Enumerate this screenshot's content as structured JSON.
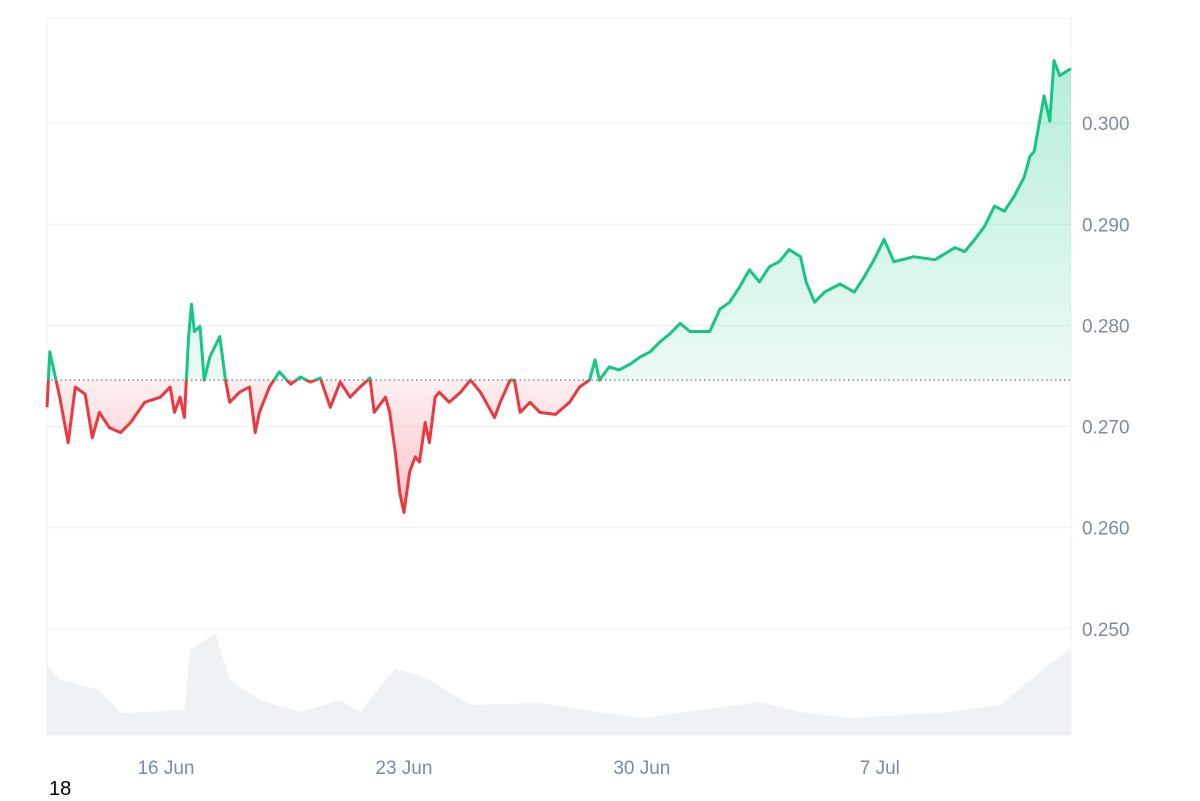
{
  "chart_data": {
    "type": "line",
    "title": "",
    "xlabel": "",
    "ylabel": "",
    "ylim": [
      0.2395,
      0.3104
    ],
    "xlim": [
      "06-12 12:00",
      "07-12 15:00"
    ],
    "x_ticks": [
      "16 Jun",
      "23 Jun",
      "30 Jun",
      "7 Jul"
    ],
    "x_tick_dates": [
      "06-16 00:00",
      "06-23 00:00",
      "06-30 00:00",
      "07-07 00:00"
    ],
    "y_ticks": [
      0.25,
      0.26,
      0.27,
      0.28,
      0.29,
      0.3
    ],
    "y_tick_labels": [
      "0.250",
      "0.260",
      "0.270",
      "0.280",
      "0.290",
      "0.300"
    ],
    "y_axis_position": "right",
    "grid": true,
    "baseline": 0.2746,
    "colors": {
      "above": "#16c784",
      "below": "#ea3943",
      "volume": "#eff2f5",
      "grid": "#eff2f5",
      "tick": "#808a9d"
    },
    "series": [
      {
        "values": [
          [
            "06-12 12:00",
            0.2719
          ],
          [
            "06-12 14:00",
            0.2774
          ],
          [
            "06-12 21:00",
            0.2729
          ],
          [
            "06-13 03:00",
            0.2684
          ],
          [
            "06-13 08:00",
            0.2739
          ],
          [
            "06-13 15:00",
            0.2732
          ],
          [
            "06-13 20:00",
            0.2689
          ],
          [
            "06-14 01:00",
            0.2714
          ],
          [
            "06-14 08:00",
            0.2699
          ],
          [
            "06-14 16:00",
            0.2694
          ],
          [
            "06-14 23:00",
            0.2704
          ],
          [
            "06-15 09:00",
            0.2724
          ],
          [
            "06-15 20:00",
            0.2729
          ],
          [
            "06-16 03:00",
            0.2739
          ],
          [
            "06-16 06:00",
            0.2714
          ],
          [
            "06-16 10:00",
            0.2729
          ],
          [
            "06-16 13:00",
            0.2709
          ],
          [
            "06-16 16:00",
            0.2789
          ],
          [
            "06-16 18:00",
            0.2821
          ],
          [
            "06-16 20:00",
            0.2794
          ],
          [
            "06-17 00:00",
            0.2799
          ],
          [
            "06-17 03:00",
            0.2746
          ],
          [
            "06-17 07:00",
            0.2769
          ],
          [
            "06-17 14:00",
            0.2789
          ],
          [
            "06-17 18:00",
            0.2746
          ],
          [
            "06-17 21:00",
            0.2724
          ],
          [
            "06-18 04:00",
            0.2734
          ],
          [
            "06-18 11:00",
            0.2739
          ],
          [
            "06-18 15:00",
            0.2694
          ],
          [
            "06-18 18:00",
            0.2714
          ],
          [
            "06-19 01:00",
            0.2739
          ],
          [
            "06-19 08:00",
            0.2754
          ],
          [
            "06-19 16:00",
            0.2742
          ],
          [
            "06-19 23:00",
            0.2749
          ],
          [
            "06-20 06:00",
            0.2744
          ],
          [
            "06-20 13:00",
            0.2748
          ],
          [
            "06-20 20:00",
            0.2719
          ],
          [
            "06-21 03:00",
            0.2744
          ],
          [
            "06-21 10:00",
            0.2729
          ],
          [
            "06-21 17:00",
            0.2739
          ],
          [
            "06-22 00:00",
            0.2748
          ],
          [
            "06-22 03:00",
            0.2714
          ],
          [
            "06-22 11:00",
            0.2729
          ],
          [
            "06-22 14:00",
            0.2714
          ],
          [
            "06-22 18:00",
            0.2674
          ],
          [
            "06-22 21:00",
            0.2635
          ],
          [
            "06-23 00:00",
            0.2615
          ],
          [
            "06-23 04:00",
            0.2655
          ],
          [
            "06-23 08:00",
            0.267
          ],
          [
            "06-23 11:00",
            0.2665
          ],
          [
            "06-23 15:00",
            0.2704
          ],
          [
            "06-23 18:00",
            0.2684
          ],
          [
            "06-23 22:00",
            0.2729
          ],
          [
            "06-24 01:00",
            0.2734
          ],
          [
            "06-24 08:00",
            0.2724
          ],
          [
            "06-24 16:00",
            0.2734
          ],
          [
            "06-24 23:00",
            0.2746
          ],
          [
            "06-25 06:00",
            0.2734
          ],
          [
            "06-25 16:00",
            0.2709
          ],
          [
            "06-25 20:00",
            0.2724
          ],
          [
            "06-26 03:00",
            0.2746
          ],
          [
            "06-26 06:00",
            0.2746
          ],
          [
            "06-26 10:00",
            0.2714
          ],
          [
            "06-26 17:00",
            0.2724
          ],
          [
            "06-27 00:00",
            0.2714
          ],
          [
            "06-27 11:00",
            0.2712
          ],
          [
            "06-27 21:00",
            0.2724
          ],
          [
            "06-28 04:00",
            0.2739
          ],
          [
            "06-28 11:00",
            0.2746
          ],
          [
            "06-28 15:00",
            0.2766
          ],
          [
            "06-28 18:00",
            0.2746
          ],
          [
            "06-29 01:00",
            0.2759
          ],
          [
            "06-29 08:00",
            0.2756
          ],
          [
            "06-29 16:00",
            0.2762
          ],
          [
            "06-29 23:00",
            0.2769
          ],
          [
            "06-30 06:00",
            0.2774
          ],
          [
            "06-30 13:00",
            0.2784
          ],
          [
            "06-30 20:00",
            0.2792
          ],
          [
            "07-01 03:00",
            0.2802
          ],
          [
            "07-01 10:00",
            0.2794
          ],
          [
            "07-02 00:00",
            0.2794
          ],
          [
            "07-02 07:00",
            0.2816
          ],
          [
            "07-02 14:00",
            0.2823
          ],
          [
            "07-02 21:00",
            0.2838
          ],
          [
            "07-03 04:00",
            0.2855
          ],
          [
            "07-03 11:00",
            0.2843
          ],
          [
            "07-03 18:00",
            0.2858
          ],
          [
            "07-04 01:00",
            0.2863
          ],
          [
            "07-04 08:00",
            0.2875
          ],
          [
            "07-04 16:00",
            0.2868
          ],
          [
            "07-04 20:00",
            0.2843
          ],
          [
            "07-05 02:00",
            0.2823
          ],
          [
            "07-05 09:00",
            0.2833
          ],
          [
            "07-05 20:00",
            0.2841
          ],
          [
            "07-06 06:00",
            0.2833
          ],
          [
            "07-06 13:00",
            0.2848
          ],
          [
            "07-06 20:00",
            0.2865
          ],
          [
            "07-07 03:00",
            0.2885
          ],
          [
            "07-07 10:00",
            0.2863
          ],
          [
            "07-08 00:00",
            0.2868
          ],
          [
            "07-08 15:00",
            0.2865
          ],
          [
            "07-09 05:00",
            0.2877
          ],
          [
            "07-09 12:00",
            0.2873
          ],
          [
            "07-09 19:00",
            0.2885
          ],
          [
            "07-10 02:00",
            0.2898
          ],
          [
            "07-10 09:00",
            0.2918
          ],
          [
            "07-10 16:00",
            0.2913
          ],
          [
            "07-10 23:00",
            0.2928
          ],
          [
            "07-11 06:00",
            0.2947
          ],
          [
            "07-11 10:00",
            0.2967
          ],
          [
            "07-11 13:00",
            0.2972
          ],
          [
            "07-11 20:00",
            0.3027
          ],
          [
            "07-12 00:00",
            0.3002
          ],
          [
            "07-12 03:00",
            0.3062
          ],
          [
            "07-12 07:00",
            0.3047
          ],
          [
            "07-12 15:00",
            0.3054
          ]
        ]
      }
    ],
    "volume_relative": [
      [
        "06-12 12:00",
        70
      ],
      [
        "06-12 21:00",
        55
      ],
      [
        "06-14 01:00",
        45
      ],
      [
        "06-14 16:00",
        22
      ],
      [
        "06-16 13:00",
        25
      ],
      [
        "06-16 17:00",
        85
      ],
      [
        "06-17 11:00",
        102
      ],
      [
        "06-17 21:00",
        55
      ],
      [
        "06-18 18:00",
        35
      ],
      [
        "06-19 23:00",
        23
      ],
      [
        "06-21 03:00",
        35
      ],
      [
        "06-21 17:00",
        23
      ],
      [
        "06-22 18:00",
        67
      ],
      [
        "06-23 18:00",
        55
      ],
      [
        "06-24 23:00",
        30
      ],
      [
        "06-27 00:00",
        32
      ],
      [
        "06-28 18:00",
        23
      ],
      [
        "06-29 23:00",
        17
      ],
      [
        "07-01 17:00",
        25
      ],
      [
        "07-03 11:00",
        33
      ],
      [
        "07-04 16:00",
        23
      ],
      [
        "07-06 03:00",
        17
      ],
      [
        "07-09 01:00",
        23
      ],
      [
        "07-10 13:00",
        30
      ],
      [
        "07-11 10:00",
        55
      ],
      [
        "07-12 15:00",
        87
      ]
    ]
  },
  "footer": {
    "corner_label": "18"
  }
}
